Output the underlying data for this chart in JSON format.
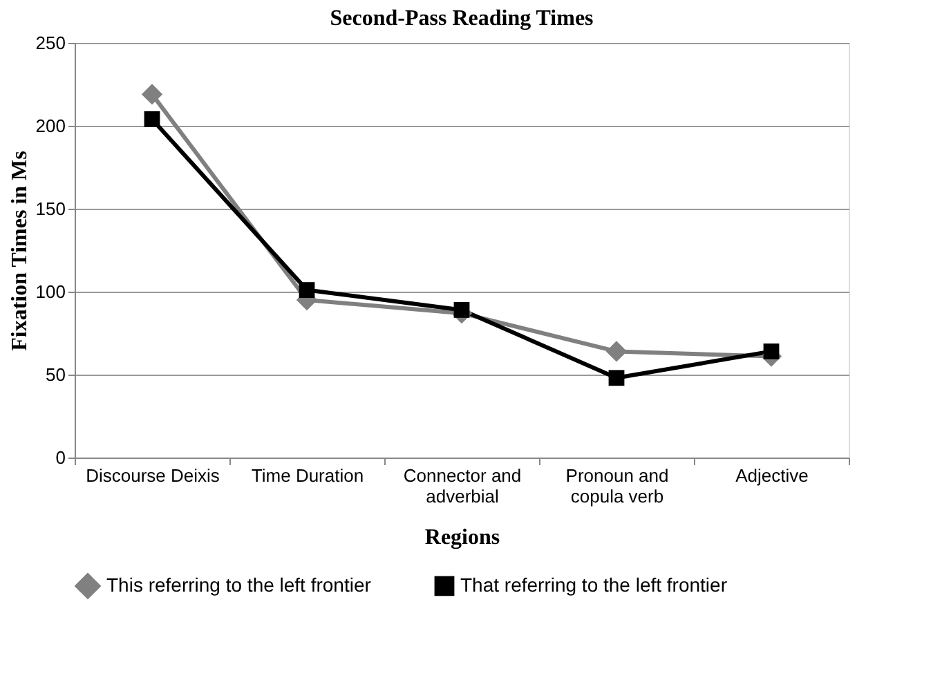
{
  "chart_data": {
    "type": "line",
    "title": "Second-Pass Reading Times",
    "xlabel": "Regions",
    "ylabel": "Fixation Times in Ms",
    "categories": [
      "Discourse Deixis",
      "Time Duration",
      "Connector and adverbial",
      "Pronoun and copula verb",
      "Adjective"
    ],
    "series": [
      {
        "name": "This referring to the left frontier",
        "color": "#808080",
        "marker": "diamond",
        "values": [
          219,
          95,
          87,
          64,
          61
        ]
      },
      {
        "name": "That referring to the left frontier",
        "color": "#000000",
        "marker": "square",
        "values": [
          204,
          101,
          89,
          48,
          64
        ]
      }
    ],
    "ylim": [
      0,
      250
    ],
    "yticks": [
      0,
      50,
      100,
      150,
      200,
      250
    ],
    "grid": "y",
    "legend": "bottom",
    "line_style": "solid"
  }
}
